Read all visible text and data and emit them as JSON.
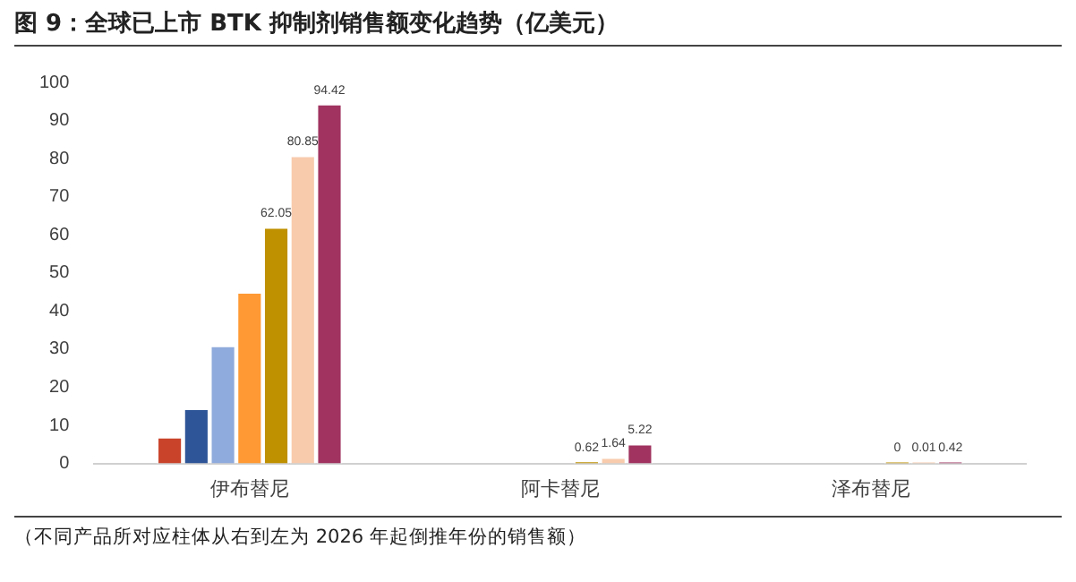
{
  "chart_data": {
    "type": "bar",
    "title": "图 9：全球已上市 BTK 抑制剂销售额变化趋势（亿美元）",
    "categories": [
      "伊布替尼",
      "阿卡替尼",
      "泽布替尼"
    ],
    "series": [
      {
        "color": "#c9432a",
        "values": [
          7,
          null,
          null
        ],
        "value_labels": [
          null,
          null,
          null
        ]
      },
      {
        "color": "#2e5597",
        "values": [
          14.5,
          null,
          null
        ],
        "value_labels": [
          null,
          null,
          null
        ]
      },
      {
        "color": "#8faadc",
        "values": [
          31,
          null,
          null
        ],
        "value_labels": [
          null,
          null,
          null
        ]
      },
      {
        "color": "#ff9933",
        "values": [
          45,
          null,
          null
        ],
        "value_labels": [
          null,
          null,
          null
        ]
      },
      {
        "color": "#bf9000",
        "values": [
          62.05,
          0.62,
          0
        ],
        "value_labels": [
          "62.05",
          "0.62",
          "0"
        ]
      },
      {
        "color": "#f8cbad",
        "values": [
          80.85,
          1.64,
          0.01
        ],
        "value_labels": [
          "80.85",
          "1.64",
          "0.01"
        ]
      },
      {
        "color": "#a0335f",
        "values": [
          94.42,
          5.22,
          0.42
        ],
        "value_labels": [
          "94.42",
          "5.22",
          "0.42"
        ]
      }
    ],
    "ylim": [
      0,
      100
    ],
    "yticks": [
      0,
      10,
      20,
      30,
      40,
      50,
      60,
      70,
      80,
      90,
      100
    ],
    "grid": false,
    "legend": false,
    "annotations": [
      "（不同产品所对应柱体从右到左为 2026 年起倒推年份的销售额）"
    ]
  }
}
